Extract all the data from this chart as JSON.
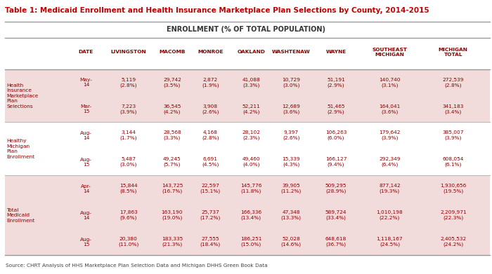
{
  "title": "Table 1: Medicaid Enrollment and Health Insurance Marketplace Plan Selections by County, 2014-2015",
  "subtitle": "ENROLLMENT (% OF TOTAL POPULATION)",
  "source": "Source: CHRT Analysis of HHS Marketplace Plan Selection Data and Michigan DHHS Green Book Data",
  "col_headers": [
    "DATE",
    "LIVINGSTON",
    "MACOMB",
    "MONROE",
    "OAKLAND",
    "WASHTENAW",
    "WAYNE",
    "SOUTHEAST\nMICHIGAN",
    "MICHIGAN\nTOTAL"
  ],
  "row_groups": [
    {
      "label": "Health\nInsurance\nMarketplace\nPlan\nSelections",
      "bg_color": "#f2dcdb",
      "rows": [
        [
          "May-\n14",
          "5,119\n(2.8%)",
          "29,742\n(3.5%)",
          "2,872\n(1.9%)",
          "41,088\n(3.3%)",
          "10,729\n(3.0%)",
          "51,191\n(2.9%)",
          "140,740\n(3.1%)",
          "272,539\n(2.8%)"
        ],
        [
          "Mar-\n15",
          "7,223\n(3.9%)",
          "36,545\n(4.2%)",
          "3,908\n(2.6%)",
          "52,211\n(4.2%)",
          "12,689\n(3.6%)",
          "51,465\n(2.9%)",
          "164,041\n(3.6%)",
          "341,183\n(3.4%)"
        ]
      ]
    },
    {
      "label": "Healthy\nMichigan\nPlan\nEnrollment",
      "bg_color": "#ffffff",
      "rows": [
        [
          "Aug-\n14",
          "3,144\n(1.7%)",
          "28,568\n(3.3%)",
          "4,168\n(2.8%)",
          "28,102\n(2.3%)",
          "9,397\n(2.6%)",
          "106,263\n(6.0%)",
          "179,642\n(3.9%)",
          "385,007\n(3.9%)"
        ],
        [
          "Aug-\n15",
          "5,487\n(3.0%)",
          "49,245\n(5.7%)",
          "6,691\n(4.5%)",
          "49,460\n(4.0%)",
          "15,339\n(4.3%)",
          "166,127\n(9.4%)",
          "292,349\n(6.4%)",
          "608,054\n(6.1%)"
        ]
      ]
    },
    {
      "label": "Total\nMedicaid\nEnrollment",
      "bg_color": "#f2dcdb",
      "rows": [
        [
          "Apr-\n14",
          "15,844\n(8.5%)",
          "143,725\n(16.7%)",
          "22,597\n(15.1%)",
          "145,776\n(11.8%)",
          "39,905\n(11.2%)",
          "509,295\n(28.9%)",
          "877,142\n(19.3%)",
          "1,930,656\n(19.5%)"
        ],
        [
          "Aug-\n14",
          "17,863\n(9.6%)",
          "163,190\n(19.0%)",
          "25,737\n(17.2%)",
          "166,336\n(13.4%)",
          "47,348\n(13.3%)",
          "589,724\n(33.4%)",
          "1,010,198\n(22.2%)",
          "2,209,971\n(22.3%)"
        ],
        [
          "Aug-\n15",
          "20,380\n(11.0%)",
          "183,335\n(21.3%)",
          "27,555\n(18.4%)",
          "186,251\n(15.0%)",
          "52,028\n(14.6%)",
          "648,618\n(36.7%)",
          "1,118,167\n(24.5%)",
          "2,405,532\n(24.2%)"
        ]
      ]
    }
  ],
  "title_color": "#c00000",
  "header_text_color": "#8b0000",
  "data_text_color": "#8b0000",
  "label_text_color": "#8b0000",
  "border_color": "#aaaaaa",
  "col_starts_rel": [
    0.0,
    0.13,
    0.205,
    0.305,
    0.385,
    0.463,
    0.553,
    0.628,
    0.738,
    0.85,
    1.0
  ]
}
